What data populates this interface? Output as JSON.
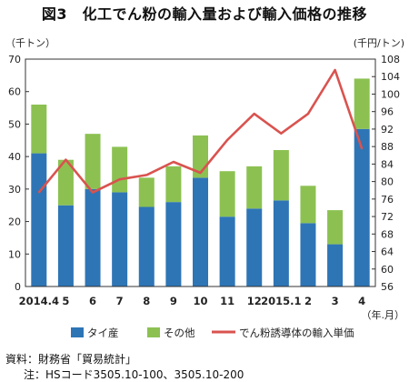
{
  "title": "図3　化工でん粉の輸入量および輸入価格の推移",
  "chart_data": {
    "type": "bar",
    "stacked": true,
    "categories": [
      "2014.4",
      "5",
      "6",
      "7",
      "8",
      "9",
      "10",
      "11",
      "12",
      "2015.1",
      "2",
      "3",
      "4"
    ],
    "series": [
      {
        "name": "タイ産",
        "type": "bar",
        "axis": "left",
        "color": "#2e75b6",
        "values": [
          41,
          25,
          30,
          29,
          24.5,
          26,
          33.5,
          21.5,
          24,
          26.5,
          19.5,
          13,
          48.5
        ]
      },
      {
        "name": "その他",
        "type": "bar",
        "axis": "left",
        "color": "#8cc152",
        "values": [
          15,
          14,
          17,
          14,
          9,
          11,
          13,
          14,
          13,
          15.5,
          11.5,
          10.5,
          15.5
        ]
      },
      {
        "name": "でん粉誘導体の輸入単価",
        "type": "line",
        "axis": "right",
        "color": "#d9534f",
        "values": [
          77.5,
          85,
          77.5,
          80.5,
          81.5,
          84.5,
          82,
          89.5,
          95.5,
          91,
          95.5,
          105.5,
          87.5
        ]
      }
    ],
    "left_axis": {
      "unit": "（千トン）",
      "min": 0,
      "max": 70,
      "step": 10
    },
    "right_axis": {
      "unit": "(千円/トン)",
      "min": 56,
      "max": 108,
      "step": 4
    },
    "x_unit": "（年.月）",
    "grid": false,
    "legend_position": "bottom"
  },
  "source": "資料：財務省「貿易統計」",
  "note": "注：HSコード3505.10-100、3505.10-200"
}
